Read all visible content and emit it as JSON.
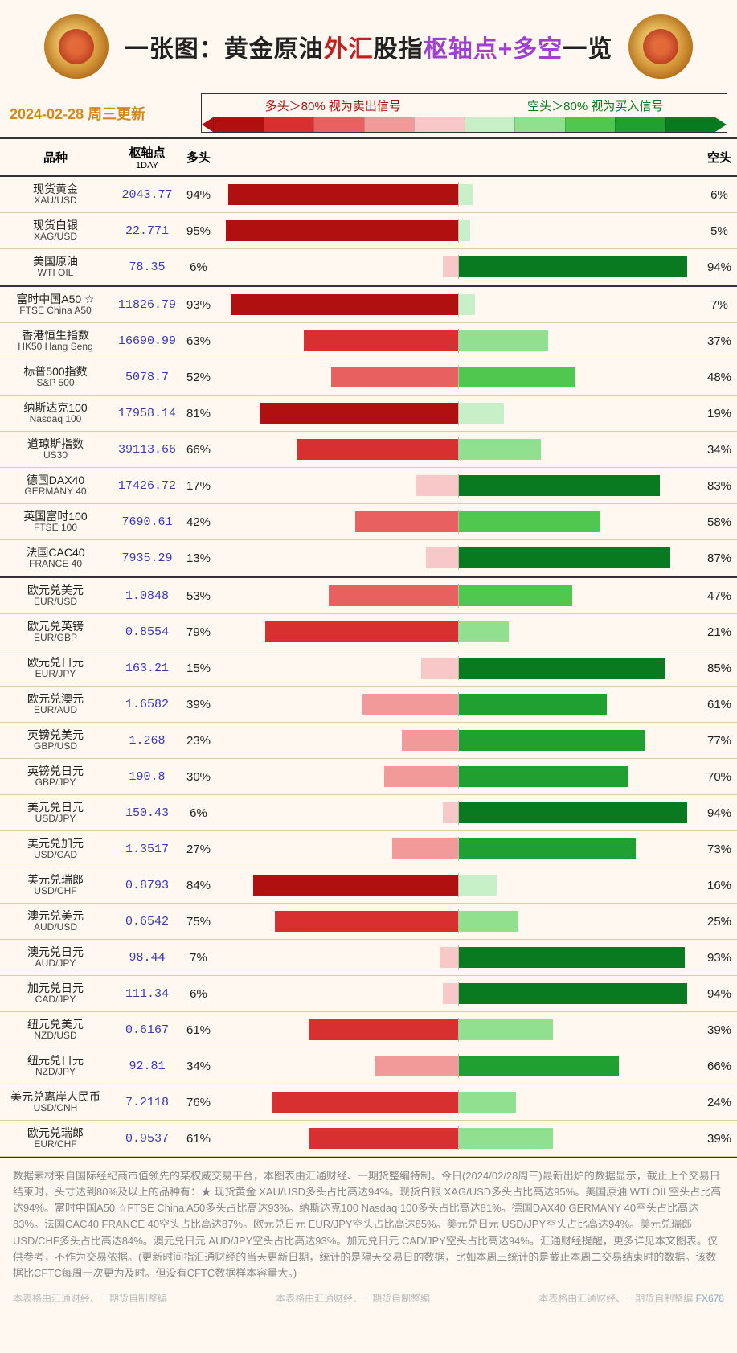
{
  "title": {
    "seg1": "一张图：黄金原油",
    "seg2": "外汇",
    "seg3": "股指",
    "seg4": "枢轴点+多空",
    "seg5": "一览"
  },
  "date_label": "2024-02-28  周三更新",
  "legend": {
    "left": "多头＞80%  视为卖出信号",
    "right": "空头＞80%  视为买入信号",
    "red_shades": [
      "#b01010",
      "#d83030",
      "#e86060",
      "#f29a9a",
      "#f8c8c8"
    ],
    "green_shades": [
      "#c8f0c8",
      "#90e090",
      "#50c850",
      "#20a030",
      "#0a7a20"
    ]
  },
  "columns": {
    "name": "品种",
    "pivot": "枢轴点",
    "pivot_sub": "1DAY",
    "long": "多头",
    "short": "空头"
  },
  "bg_color": "#fef8f0",
  "groups": [
    {
      "rows": [
        {
          "cn": "现货黄金",
          "en": "XAU/USD",
          "pivot": "2043.77",
          "long": 94,
          "short": 6
        },
        {
          "cn": "现货白银",
          "en": "XAG/USD",
          "pivot": "22.771",
          "long": 95,
          "short": 5
        },
        {
          "cn": "美国原油",
          "en": "WTI OIL",
          "pivot": "78.35",
          "long": 6,
          "short": 94
        }
      ]
    },
    {
      "rows": [
        {
          "cn": "富时中国A50 ☆",
          "en": "FTSE China A50",
          "pivot": "11826.79",
          "long": 93,
          "short": 7
        },
        {
          "cn": "香港恒生指数",
          "en": "HK50 Hang Seng",
          "pivot": "16690.99",
          "long": 63,
          "short": 37
        },
        {
          "cn": "标普500指数",
          "en": "S&P 500",
          "pivot": "5078.7",
          "long": 52,
          "short": 48
        },
        {
          "cn": "纳斯达克100",
          "en": "Nasdaq 100",
          "pivot": "17958.14",
          "long": 81,
          "short": 19
        },
        {
          "cn": "道琼斯指数",
          "en": "US30",
          "pivot": "39113.66",
          "long": 66,
          "short": 34
        },
        {
          "cn": "德国DAX40",
          "en": "GERMANY 40",
          "pivot": "17426.72",
          "long": 17,
          "short": 83
        },
        {
          "cn": "英国富时100",
          "en": "FTSE 100",
          "pivot": "7690.61",
          "long": 42,
          "short": 58
        },
        {
          "cn": "法国CAC40",
          "en": "FRANCE 40",
          "pivot": "7935.29",
          "long": 13,
          "short": 87
        }
      ]
    },
    {
      "rows": [
        {
          "cn": "欧元兑美元",
          "en": "EUR/USD",
          "pivot": "1.0848",
          "long": 53,
          "short": 47
        },
        {
          "cn": "欧元兑英镑",
          "en": "EUR/GBP",
          "pivot": "0.8554",
          "long": 79,
          "short": 21
        },
        {
          "cn": "欧元兑日元",
          "en": "EUR/JPY",
          "pivot": "163.21",
          "long": 15,
          "short": 85
        },
        {
          "cn": "欧元兑澳元",
          "en": "EUR/AUD",
          "pivot": "1.6582",
          "long": 39,
          "short": 61
        },
        {
          "cn": "英镑兑美元",
          "en": "GBP/USD",
          "pivot": "1.268",
          "long": 23,
          "short": 77
        },
        {
          "cn": "英镑兑日元",
          "en": "GBP/JPY",
          "pivot": "190.8",
          "long": 30,
          "short": 70
        },
        {
          "cn": "美元兑日元",
          "en": "USD/JPY",
          "pivot": "150.43",
          "long": 6,
          "short": 94
        },
        {
          "cn": "美元兑加元",
          "en": "USD/CAD",
          "pivot": "1.3517",
          "long": 27,
          "short": 73
        },
        {
          "cn": "美元兑瑞郎",
          "en": "USD/CHF",
          "pivot": "0.8793",
          "long": 84,
          "short": 16
        },
        {
          "cn": "澳元兑美元",
          "en": "AUD/USD",
          "pivot": "0.6542",
          "long": 75,
          "short": 25
        },
        {
          "cn": "澳元兑日元",
          "en": "AUD/JPY",
          "pivot": "98.44",
          "long": 7,
          "short": 93
        },
        {
          "cn": "加元兑日元",
          "en": "CAD/JPY",
          "pivot": "111.34",
          "long": 6,
          "short": 94
        },
        {
          "cn": "纽元兑美元",
          "en": "NZD/USD",
          "pivot": "0.6167",
          "long": 61,
          "short": 39
        },
        {
          "cn": "纽元兑日元",
          "en": "NZD/JPY",
          "pivot": "92.81",
          "long": 34,
          "short": 66
        },
        {
          "cn": "美元兑离岸人民币",
          "en": "USD/CNH",
          "pivot": "7.2118",
          "long": 76,
          "short": 24
        },
        {
          "cn": "欧元兑瑞郎",
          "en": "EUR/CHF",
          "pivot": "0.9537",
          "long": 61,
          "short": 39
        }
      ]
    }
  ],
  "footer_text": "数据素材来自国际经纪商市值领先的某权威交易平台，本图表由汇通财经、一期货整编特制。今日(2024/02/28周三)最新出炉的数据显示，截止上个交易日结束时，头寸达到80%及以上的品种有：★ 现货黄金 XAU/USD多头占比高达94%。现货白银 XAG/USD多头占比高达95%。美国原油 WTI OIL空头占比高达94%。富时中国A50 ☆FTSE China A50多头占比高达93%。纳斯达克100 Nasdaq 100多头占比高达81%。德国DAX40      GERMANY 40空头占比高达83%。法国CAC40      FRANCE 40空头占比高达87%。欧元兑日元 EUR/JPY空头占比高达85%。美元兑日元 USD/JPY空头占比高达94%。美元兑瑞郎 USD/CHF多头占比高达84%。澳元兑日元 AUD/JPY空头占比高达93%。加元兑日元 CAD/JPY空头占比高达94%。汇通财经提醒，更多详见本文图表。仅供参考，不作为交易依据。(更新时间指汇通财经的当天更新日期，统计的是隔天交易日的数据，比如本周三统计的是截止本周二交易结束时的数据。该数据比CFTC每周一次更为及时。但没有CFTC数据样本容量大。)",
  "footer_credits": "本表格由汇通财经、一期货自制整编",
  "watermark": "FX678"
}
